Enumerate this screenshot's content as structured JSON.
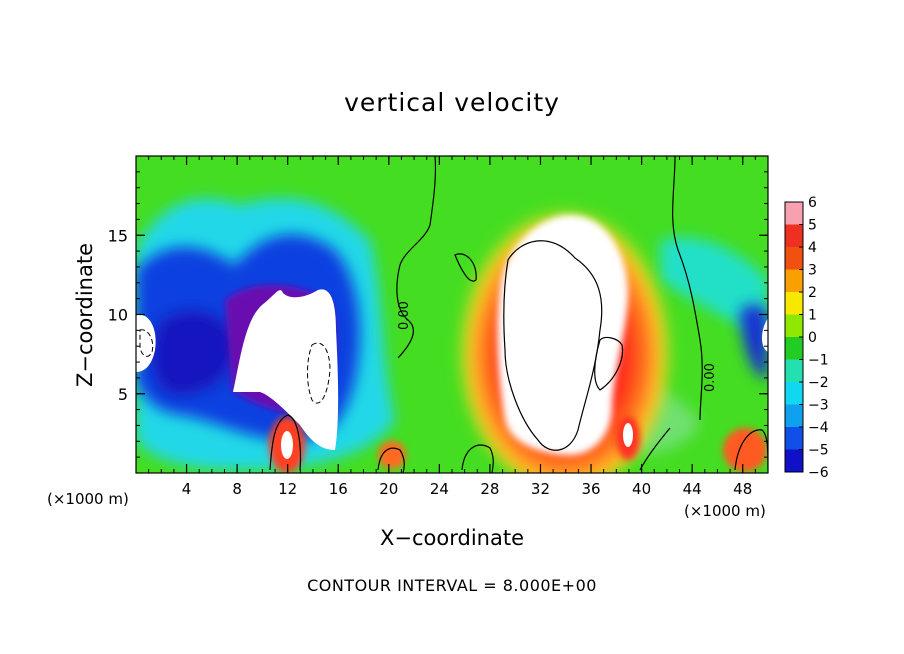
{
  "chart_data": {
    "type": "heatmap",
    "title": "vertical velocity",
    "xlabel": "X−coordinate",
    "ylabel": "Z−coordinate",
    "x_unit_label": "(×1000 m)",
    "x_unit_label_right": "(×1000 m)",
    "xlim": [
      0,
      50
    ],
    "ylim": [
      0,
      20
    ],
    "xticks": [
      4,
      8,
      12,
      16,
      20,
      24,
      28,
      32,
      36,
      40,
      44,
      48
    ],
    "yticks": [
      5,
      10,
      15
    ],
    "contour_interval_text": "CONTOUR INTERVAL = 8.000E+00",
    "contour_labels": [
      "0.00",
      "0.00"
    ],
    "colorbar": {
      "ticks": [
        6,
        5,
        4,
        3,
        2,
        1,
        0,
        -1,
        -2,
        -3,
        -4,
        -5,
        -6
      ],
      "tick_labels": [
        "6",
        "5",
        "4",
        "3",
        "2",
        "1",
        "0",
        "−1",
        "−2",
        "−3",
        "−4",
        "−5",
        "−6"
      ],
      "colors": [
        "#f7a0b0",
        "#ee3020",
        "#f05010",
        "#f8a000",
        "#f8e800",
        "#90e800",
        "#22cc22",
        "#22e0b0",
        "#10d8f0",
        "#10a0f0",
        "#1050e8",
        "#1010c8",
        "#7000a8"
      ]
    },
    "grid": false,
    "legend": "colorbar-right"
  }
}
